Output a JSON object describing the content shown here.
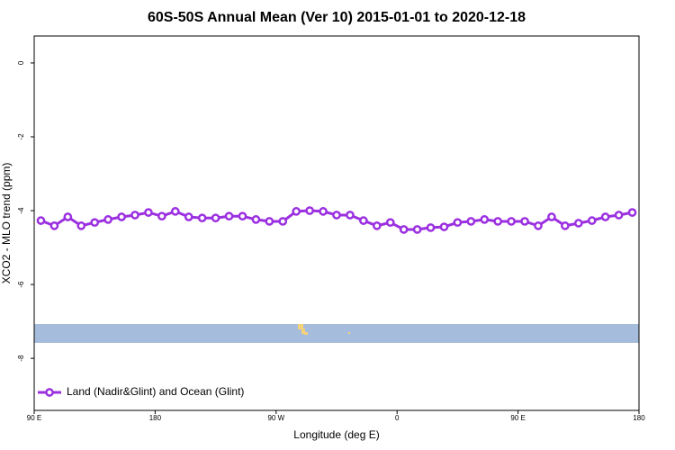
{
  "chart_data": {
    "type": "line",
    "title": "60S-50S Annual Mean (Ver 10)   2015-01-01 to 2020-12-18",
    "x_label": "Longitude (deg E)",
    "y_label": "XCO2 - MLO trend (ppm)",
    "x": [
      95,
      105,
      115,
      125,
      135,
      145,
      155,
      165,
      175,
      185,
      195,
      205,
      215,
      225,
      235,
      245,
      255,
      265,
      275,
      285,
      295,
      305,
      315,
      325,
      335,
      345,
      355,
      365,
      375,
      385,
      395,
      405,
      415,
      425,
      435,
      445,
      455,
      465,
      475,
      485,
      495,
      505,
      515,
      525,
      535
    ],
    "series": [
      {
        "name": "Land (Nadir&Glint) and Ocean (Glint)",
        "color": "#9b30e0",
        "values": [
          -4.27,
          -4.41,
          -4.17,
          -4.41,
          -4.32,
          -4.24,
          -4.17,
          -4.12,
          -4.05,
          -4.15,
          -4.02,
          -4.17,
          -4.2,
          -4.2,
          -4.15,
          -4.15,
          -4.24,
          -4.29,
          -4.29,
          -4.02,
          -4.0,
          -4.02,
          -4.12,
          -4.12,
          -4.27,
          -4.41,
          -4.32,
          -4.51,
          -4.51,
          -4.46,
          -4.44,
          -4.32,
          -4.29,
          -4.24,
          -4.29,
          -4.29,
          -4.29,
          -4.41,
          -4.17,
          -4.41,
          -4.34,
          -4.27,
          -4.17,
          -4.12,
          -4.05
        ]
      }
    ],
    "xlim": [
      90,
      540
    ],
    "xticks": [
      {
        "value": 90,
        "label": "90 E"
      },
      180,
      {
        "value": 270,
        "label": "90 W"
      },
      {
        "value": 360,
        "label": "0"
      },
      {
        "value": 450,
        "label": "90 E"
      },
      {
        "value": 540,
        "label": "180"
      }
    ],
    "ylim": [
      -9.41,
      0.73
    ],
    "yticks": [
      0,
      -2,
      -4,
      -6,
      -8
    ],
    "legend": "bottom-left",
    "grid": false
  }
}
